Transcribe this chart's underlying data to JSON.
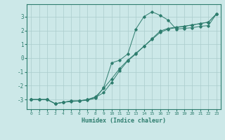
{
  "xlabel": "Humidex (Indice chaleur)",
  "background_color": "#cce8e8",
  "grid_color": "#aacccc",
  "line_color": "#2e7d6e",
  "xlim": [
    -0.5,
    23.5
  ],
  "ylim": [
    -3.7,
    3.9
  ],
  "yticks": [
    -3,
    -2,
    -1,
    0,
    1,
    2,
    3
  ],
  "xticks": [
    0,
    1,
    2,
    3,
    4,
    5,
    6,
    7,
    8,
    9,
    10,
    11,
    12,
    13,
    14,
    15,
    16,
    17,
    18,
    19,
    20,
    21,
    22,
    23
  ],
  "x": [
    0,
    1,
    2,
    3,
    4,
    5,
    6,
    7,
    8,
    9,
    10,
    11,
    12,
    13,
    14,
    15,
    16,
    17,
    18,
    19,
    20,
    21,
    22,
    23
  ],
  "line1": [
    -3.0,
    -3.0,
    -3.0,
    -3.3,
    -3.2,
    -3.15,
    -3.1,
    -3.05,
    -2.9,
    -2.15,
    -0.35,
    -0.15,
    0.3,
    2.1,
    3.0,
    3.35,
    3.1,
    2.75,
    2.1,
    2.15,
    2.2,
    2.3,
    2.35,
    3.2
  ],
  "line2": [
    -3.0,
    -3.0,
    -3.0,
    -3.3,
    -3.2,
    -3.1,
    -3.1,
    -3.0,
    -2.85,
    -2.5,
    -1.75,
    -0.9,
    -0.2,
    0.3,
    0.85,
    1.35,
    1.85,
    2.1,
    2.2,
    2.3,
    2.4,
    2.5,
    2.6,
    3.2
  ],
  "line3": [
    -3.0,
    -3.0,
    -3.0,
    -3.3,
    -3.2,
    -3.1,
    -3.1,
    -3.0,
    -2.8,
    -2.2,
    -1.5,
    -0.75,
    -0.15,
    0.35,
    0.85,
    1.4,
    1.95,
    2.15,
    2.25,
    2.3,
    2.4,
    2.5,
    2.6,
    3.2
  ]
}
